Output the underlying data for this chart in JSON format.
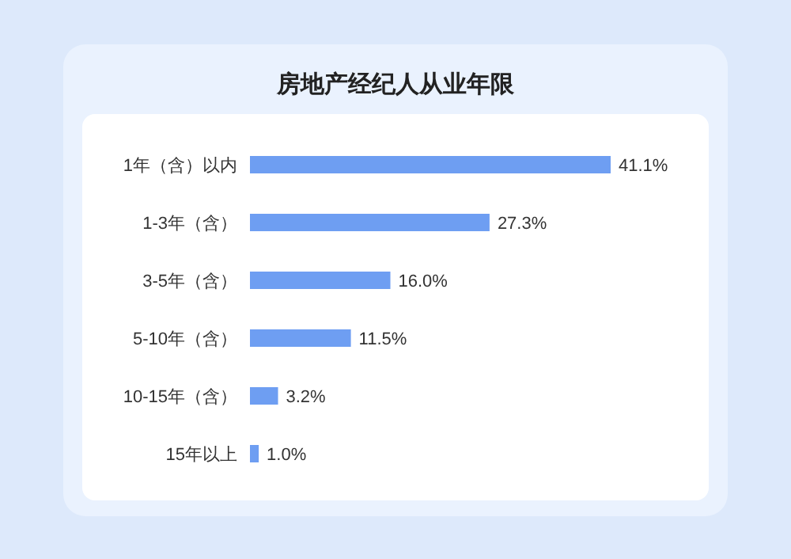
{
  "chart_data": {
    "type": "bar",
    "orientation": "horizontal",
    "title": "房地产经纪人从业年限",
    "categories": [
      "1年（含）以内",
      "1-3年（含）",
      "3-5年（含）",
      "5-10年（含）",
      "10-15年（含）",
      "15年以上"
    ],
    "values": [
      41.1,
      27.3,
      16.0,
      11.5,
      3.2,
      1.0
    ],
    "value_labels": [
      "41.1%",
      "27.3%",
      "16.0%",
      "11.5%",
      "3.2%",
      "1.0%"
    ],
    "color": "#6e9ef2"
  }
}
